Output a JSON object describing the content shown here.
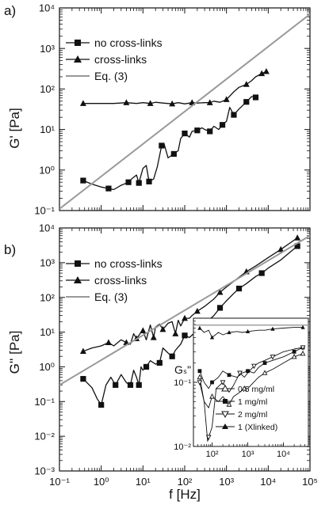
{
  "chart_data": [
    {
      "panel_label": "a)",
      "type": "line",
      "ylabel": "G' [Pa]",
      "xlabel": "",
      "xscale": "log",
      "yscale": "log",
      "xlim": [
        0.1,
        100000
      ],
      "ylim": [
        0.1,
        10000
      ],
      "yticks": [
        "10⁻¹",
        "10⁰",
        "10¹",
        "10²",
        "10³",
        "10⁴"
      ],
      "legend": {
        "placement": "top-left",
        "entries": [
          "no cross-links",
          "cross-links",
          "Eq. (3)"
        ]
      },
      "series": [
        {
          "name": "no cross-links",
          "marker": "square",
          "points": [
            [
              0.37,
              0.55
            ],
            [
              0.6,
              0.45
            ],
            [
              1.0,
              0.38
            ],
            [
              1.5,
              0.35
            ],
            [
              2.0,
              0.33
            ],
            [
              3.0,
              0.42
            ],
            [
              4.5,
              0.5
            ],
            [
              5.5,
              0.62
            ],
            [
              7,
              0.75
            ],
            [
              8,
              0.48
            ],
            [
              10,
              1.1
            ],
            [
              12,
              1.3
            ],
            [
              14,
              0.52
            ],
            [
              18,
              0.6
            ],
            [
              22,
              1.2
            ],
            [
              28,
              4.0
            ],
            [
              32,
              4.5
            ],
            [
              40,
              2.0
            ],
            [
              55,
              2.5
            ],
            [
              70,
              3.0
            ],
            [
              80,
              6.0
            ],
            [
              100,
              8.0
            ],
            [
              130,
              6.5
            ],
            [
              150,
              9.0
            ],
            [
              200,
              9.5
            ],
            [
              260,
              11
            ],
            [
              300,
              10
            ],
            [
              400,
              9.0
            ],
            [
              500,
              12
            ],
            [
              650,
              10
            ],
            [
              800,
              13
            ],
            [
              1000,
              16
            ],
            [
              1200,
              35
            ],
            [
              1500,
              23
            ],
            [
              2000,
              32
            ],
            [
              2500,
              40
            ],
            [
              3000,
              48
            ],
            [
              4000,
              65
            ],
            [
              5000,
              62
            ]
          ]
        },
        {
          "name": "cross-links",
          "marker": "triangle",
          "points": [
            [
              0.37,
              44
            ],
            [
              1,
              44
            ],
            [
              2,
              44
            ],
            [
              4,
              46
            ],
            [
              7,
              44
            ],
            [
              10,
              46
            ],
            [
              15,
              44
            ],
            [
              20,
              47
            ],
            [
              30,
              45
            ],
            [
              50,
              43
            ],
            [
              70,
              46
            ],
            [
              100,
              43
            ],
            [
              150,
              46
            ],
            [
              200,
              45
            ],
            [
              300,
              46
            ],
            [
              400,
              46
            ],
            [
              500,
              50
            ],
            [
              700,
              47
            ],
            [
              1000,
              55
            ],
            [
              1500,
              85
            ],
            [
              2000,
              110
            ],
            [
              3000,
              130
            ],
            [
              4000,
              160
            ],
            [
              5000,
              200
            ],
            [
              7000,
              240
            ],
            [
              9000,
              270
            ]
          ]
        },
        {
          "name": "Eq. (3)",
          "marker": "none",
          "points": [
            [
              0.1,
              0.11
            ],
            [
              100000,
              7000
            ]
          ]
        }
      ]
    },
    {
      "panel_label": "b)",
      "type": "line",
      "ylabel": "G'' [Pa]",
      "xlabel": "f [Hz]",
      "xscale": "log",
      "yscale": "log",
      "xlim": [
        0.1,
        100000
      ],
      "ylim": [
        0.001,
        10000
      ],
      "xticks": [
        "10⁻¹",
        "10⁰",
        "10¹",
        "10²",
        "10³",
        "10⁴",
        "10⁵"
      ],
      "yticks": [
        "10⁻³",
        "10⁻²",
        "10⁻¹",
        "10⁰",
        "10¹",
        "10²",
        "10³",
        "10⁴"
      ],
      "legend": {
        "placement": "top-left",
        "entries": [
          "no cross-links",
          "cross-links",
          "Eq. (3)"
        ]
      },
      "series": [
        {
          "name": "no cross-links",
          "marker": "square",
          "points": [
            [
              0.37,
              0.45
            ],
            [
              0.6,
              0.25
            ],
            [
              0.8,
              0.12
            ],
            [
              1.0,
              0.08
            ],
            [
              1.3,
              0.3
            ],
            [
              1.7,
              0.5
            ],
            [
              2.2,
              0.3
            ],
            [
              3,
              0.6
            ],
            [
              4,
              0.35
            ],
            [
              5,
              0.3
            ],
            [
              6,
              0.8
            ],
            [
              7,
              0.5
            ],
            [
              8,
              0.3
            ],
            [
              9,
              1.0
            ],
            [
              10,
              0.8
            ],
            [
              12,
              1.0
            ],
            [
              15,
              1.5
            ],
            [
              20,
              1.2
            ],
            [
              25,
              1.3
            ],
            [
              30,
              3.5
            ],
            [
              40,
              2.5
            ],
            [
              50,
              2.0
            ],
            [
              60,
              3.0
            ],
            [
              80,
              4.5
            ],
            [
              100,
              8.0
            ],
            [
              130,
              7.0
            ],
            [
              180,
              10
            ],
            [
              250,
              14
            ],
            [
              350,
              20
            ],
            [
              500,
              30
            ],
            [
              700,
              50
            ],
            [
              1000,
              80
            ],
            [
              1500,
              130
            ],
            [
              2000,
              180
            ],
            [
              3000,
              250
            ],
            [
              5000,
              400
            ],
            [
              7000,
              500
            ],
            [
              10000,
              700
            ],
            [
              20000,
              1200
            ],
            [
              50000,
              3000
            ]
          ]
        },
        {
          "name": "cross-links",
          "marker": "triangle",
          "points": [
            [
              0.37,
              2.8
            ],
            [
              0.6,
              3.5
            ],
            [
              1.0,
              4.0
            ],
            [
              1.5,
              5.0
            ],
            [
              2.0,
              4.0
            ],
            [
              3,
              6.0
            ],
            [
              4,
              5.0
            ],
            [
              5,
              4.5
            ],
            [
              6,
              9.0
            ],
            [
              7,
              6.5
            ],
            [
              8,
              8.0
            ],
            [
              9,
              10
            ],
            [
              10,
              11
            ],
            [
              12,
              6.0
            ],
            [
              15,
              16
            ],
            [
              18,
              7.0
            ],
            [
              20,
              14
            ],
            [
              25,
              17
            ],
            [
              30,
              12
            ],
            [
              40,
              18
            ],
            [
              50,
              20
            ],
            [
              60,
              9.0
            ],
            [
              70,
              22
            ],
            [
              80,
              15
            ],
            [
              100,
              25
            ],
            [
              130,
              25
            ],
            [
              150,
              30
            ],
            [
              200,
              40
            ],
            [
              300,
              55
            ],
            [
              500,
              90
            ],
            [
              700,
              140
            ],
            [
              1000,
              200
            ],
            [
              2000,
              380
            ],
            [
              3000,
              550
            ],
            [
              5000,
              800
            ],
            [
              10000,
              1400
            ],
            [
              20000,
              2400
            ],
            [
              50000,
              5200
            ]
          ]
        },
        {
          "name": "Eq. (3)",
          "marker": "none",
          "points": [
            [
              0.1,
              0.3
            ],
            [
              100000,
              6000
            ]
          ]
        }
      ],
      "inset": {
        "ylabel": "Gₛ\"",
        "xscale": "log",
        "yscale": "log",
        "xlim": [
          30,
          50000
        ],
        "ylim": [
          0.01,
          1
        ],
        "xticks": [
          "10²",
          "10³",
          "10⁴"
        ],
        "yticks": [
          "10⁻²",
          "10⁻¹"
        ],
        "legend": {
          "placement": "bottom-right",
          "entries": [
            "0.5 mg/ml",
            "1 mg/ml",
            "2 mg/ml",
            "1 (Xlinked)"
          ]
        },
        "series": [
          {
            "name": "0.5 mg/ml",
            "marker": "open-triangle-up",
            "points": [
              [
                45,
                0.12
              ],
              [
                60,
                0.05
              ],
              [
                80,
                0.04
              ],
              [
                100,
                0.06
              ],
              [
                150,
                0.05
              ],
              [
                200,
                0.06
              ],
              [
                300,
                0.045
              ],
              [
                400,
                0.06
              ],
              [
                600,
                0.07
              ],
              [
                800,
                0.08
              ],
              [
                1000,
                0.08
              ],
              [
                2000,
                0.12
              ],
              [
                3000,
                0.14
              ],
              [
                5000,
                0.16
              ],
              [
                10000,
                0.2
              ],
              [
                20000,
                0.25
              ],
              [
                35000,
                0.28
              ]
            ]
          },
          {
            "name": "1 mg/ml",
            "marker": "square",
            "points": [
              [
                45,
                0.15
              ],
              [
                60,
                0.1
              ],
              [
                80,
                0.08
              ],
              [
                100,
                0.1
              ],
              [
                150,
                0.12
              ],
              [
                200,
                0.15
              ],
              [
                300,
                0.13
              ],
              [
                500,
                0.12
              ],
              [
                700,
                0.14
              ],
              [
                1000,
                0.15
              ],
              [
                1500,
                0.14
              ],
              [
                2000,
                0.17
              ],
              [
                3000,
                0.2
              ],
              [
                5000,
                0.22
              ],
              [
                10000,
                0.25
              ],
              [
                20000,
                0.3
              ],
              [
                35000,
                0.35
              ]
            ]
          },
          {
            "name": "2 mg/ml",
            "marker": "open-triangle-down",
            "points": [
              [
                45,
                0.1
              ],
              [
                60,
                0.05
              ],
              [
                75,
                0.012
              ],
              [
                80,
                0.014
              ],
              [
                100,
                0.02
              ],
              [
                130,
                0.08
              ],
              [
                200,
                0.1
              ],
              [
                300,
                0.07
              ],
              [
                400,
                0.09
              ],
              [
                600,
                0.14
              ],
              [
                800,
                0.12
              ],
              [
                1000,
                0.14
              ],
              [
                1500,
                0.18
              ],
              [
                2000,
                0.2
              ],
              [
                3000,
                0.22
              ],
              [
                5000,
                0.25
              ],
              [
                10000,
                0.3
              ],
              [
                20000,
                0.33
              ],
              [
                35000,
                0.35
              ]
            ]
          },
          {
            "name": "1 (Xlinked)",
            "marker": "filled-triangle",
            "points": [
              [
                45,
                0.7
              ],
              [
                60,
                0.6
              ],
              [
                80,
                0.65
              ],
              [
                100,
                0.5
              ],
              [
                150,
                0.6
              ],
              [
                200,
                0.55
              ],
              [
                300,
                0.6
              ],
              [
                500,
                0.62
              ],
              [
                700,
                0.6
              ],
              [
                1000,
                0.62
              ],
              [
                2000,
                0.65
              ],
              [
                3000,
                0.65
              ],
              [
                5000,
                0.68
              ],
              [
                10000,
                0.7
              ],
              [
                20000,
                0.72
              ],
              [
                35000,
                0.72
              ]
            ]
          },
          {
            "name": "",
            "marker": "none",
            "color": "#999999",
            "points": [
              [
                30,
                0.78
              ],
              [
                50000,
                0.78
              ]
            ]
          }
        ]
      }
    }
  ],
  "colors": {
    "data": "#111111",
    "reference_line": "#999999"
  }
}
